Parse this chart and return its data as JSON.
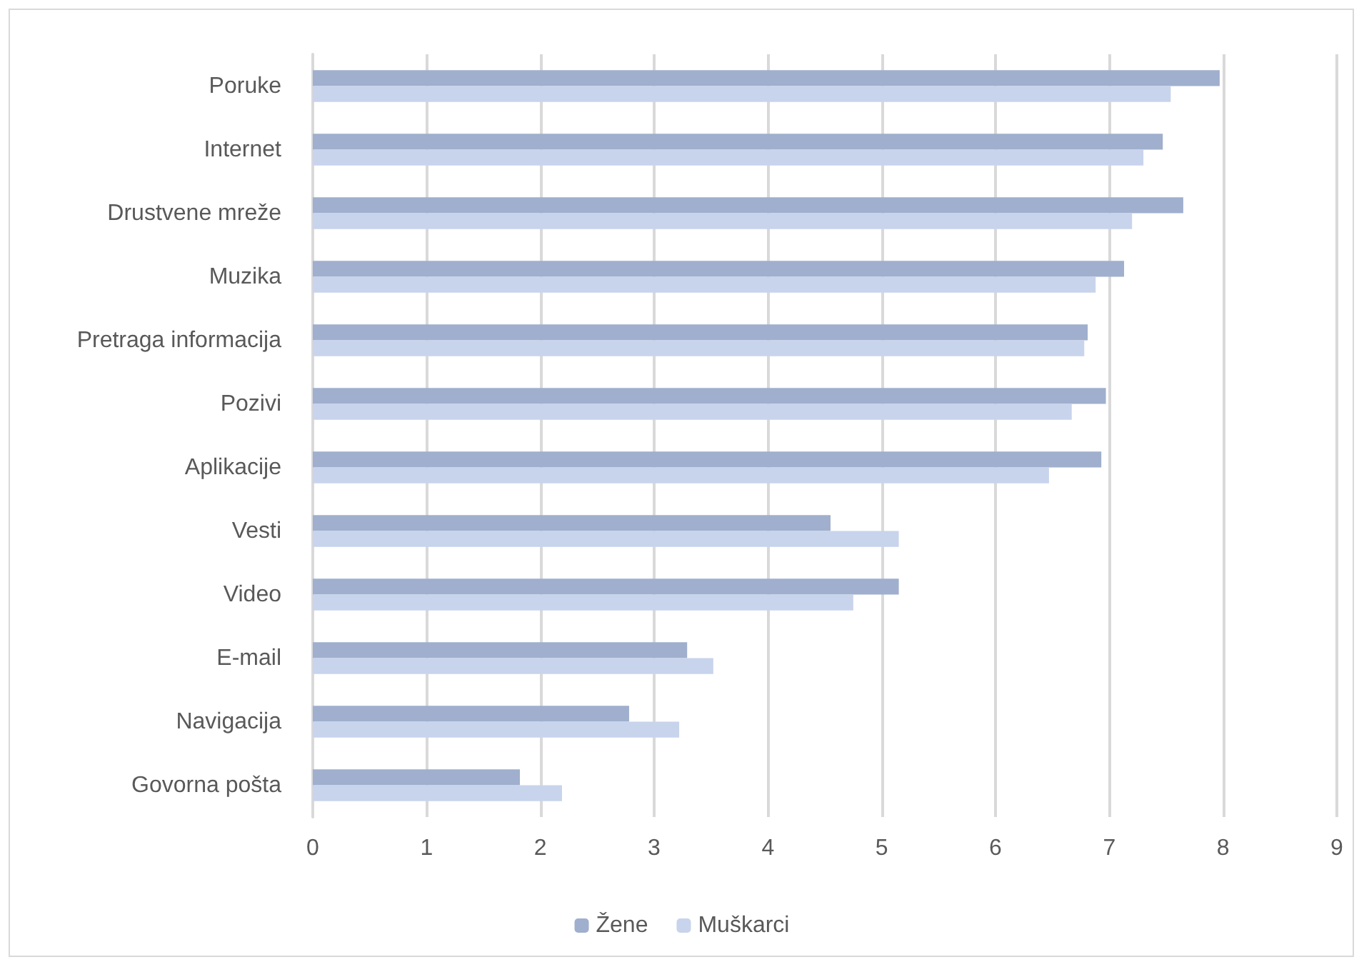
{
  "chart_data": {
    "type": "bar",
    "orientation": "horizontal",
    "categories": [
      "Poruke",
      "Internet",
      "Drustvene mreže",
      "Muzika",
      "Pretraga informacija",
      "Pozivi",
      "Aplikacije",
      "Vesti",
      "Video",
      "E-mail",
      "Navigacija",
      "Govorna pošta"
    ],
    "series": [
      {
        "name": "Žene",
        "color": "#9fafcd",
        "values": [
          7.97,
          7.47,
          7.65,
          7.13,
          6.81,
          6.97,
          6.93,
          4.55,
          5.15,
          3.29,
          2.78,
          1.82
        ]
      },
      {
        "name": "Muškarci",
        "color": "#c8d4ec",
        "values": [
          7.54,
          7.3,
          7.2,
          6.88,
          6.78,
          6.67,
          6.47,
          5.15,
          4.75,
          3.52,
          3.22,
          2.19
        ]
      }
    ],
    "xlim": [
      0,
      9
    ],
    "xticks": [
      0,
      1,
      2,
      3,
      4,
      5,
      6,
      7,
      8,
      9
    ],
    "grid": "x",
    "legend": "bottom"
  }
}
